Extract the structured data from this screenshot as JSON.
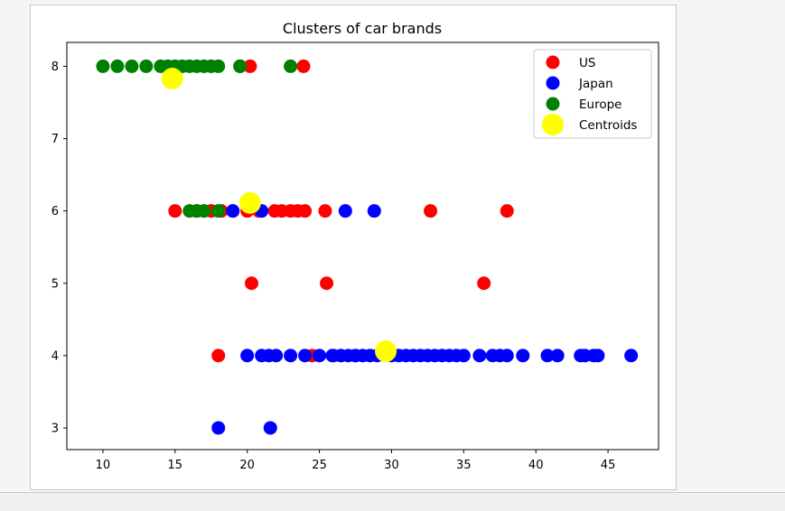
{
  "chart_data": {
    "type": "scatter",
    "title": "Clusters of car brands",
    "xlabel": "",
    "ylabel": "",
    "xlim": [
      7.5,
      48.5
    ],
    "ylim": [
      2.7,
      8.33
    ],
    "xticks": [
      10,
      15,
      20,
      25,
      30,
      35,
      40,
      45
    ],
    "yticks": [
      3,
      4,
      5,
      6,
      7,
      8
    ],
    "grid": false,
    "legend_position": "top-right",
    "series": [
      {
        "name": "US",
        "color": "#ff0000",
        "points": [
          [
            19.5,
            8
          ],
          [
            20.2,
            8
          ],
          [
            23.9,
            8
          ],
          [
            15.0,
            6
          ],
          [
            16.5,
            6
          ],
          [
            17.5,
            6
          ],
          [
            18.2,
            6
          ],
          [
            19.0,
            6
          ],
          [
            20.0,
            6
          ],
          [
            20.8,
            6
          ],
          [
            21.9,
            6
          ],
          [
            22.4,
            6
          ],
          [
            23.0,
            6
          ],
          [
            23.5,
            6
          ],
          [
            24.0,
            6
          ],
          [
            25.4,
            6
          ],
          [
            32.7,
            6
          ],
          [
            38.0,
            6
          ],
          [
            20.3,
            5
          ],
          [
            25.5,
            5
          ],
          [
            36.4,
            5
          ],
          [
            18.0,
            4
          ],
          [
            24.5,
            4
          ],
          [
            26.0,
            4
          ],
          [
            27.5,
            4
          ]
        ]
      },
      {
        "name": "Japan",
        "color": "#0000ff",
        "points": [
          [
            19.0,
            6
          ],
          [
            21.0,
            6
          ],
          [
            26.8,
            6
          ],
          [
            28.8,
            6
          ],
          [
            20.0,
            4
          ],
          [
            21.0,
            4
          ],
          [
            21.5,
            4
          ],
          [
            22.0,
            4
          ],
          [
            23.0,
            4
          ],
          [
            24.0,
            4
          ],
          [
            25.0,
            4
          ],
          [
            25.9,
            4
          ],
          [
            26.5,
            4
          ],
          [
            27.0,
            4
          ],
          [
            27.5,
            4
          ],
          [
            28.0,
            4
          ],
          [
            28.5,
            4
          ],
          [
            29.0,
            4
          ],
          [
            30.0,
            4
          ],
          [
            30.5,
            4
          ],
          [
            31.0,
            4
          ],
          [
            31.5,
            4
          ],
          [
            32.0,
            4
          ],
          [
            32.5,
            4
          ],
          [
            33.0,
            4
          ],
          [
            33.5,
            4
          ],
          [
            34.0,
            4
          ],
          [
            34.5,
            4
          ],
          [
            35.0,
            4
          ],
          [
            36.1,
            4
          ],
          [
            37.0,
            4
          ],
          [
            37.5,
            4
          ],
          [
            38.0,
            4
          ],
          [
            39.1,
            4
          ],
          [
            40.8,
            4
          ],
          [
            41.5,
            4
          ],
          [
            43.1,
            4
          ],
          [
            43.4,
            4
          ],
          [
            44.0,
            4
          ],
          [
            44.3,
            4
          ],
          [
            46.6,
            4
          ],
          [
            18.0,
            3
          ],
          [
            21.6,
            3
          ]
        ]
      },
      {
        "name": "Europe",
        "color": "#008000",
        "points": [
          [
            10.0,
            8
          ],
          [
            11.0,
            8
          ],
          [
            12.0,
            8
          ],
          [
            13.0,
            8
          ],
          [
            14.0,
            8
          ],
          [
            14.5,
            8
          ],
          [
            15.0,
            8
          ],
          [
            15.5,
            8
          ],
          [
            16.0,
            8
          ],
          [
            16.5,
            8
          ],
          [
            17.0,
            8
          ],
          [
            17.5,
            8
          ],
          [
            18.0,
            8
          ],
          [
            19.5,
            8
          ],
          [
            23.0,
            8
          ],
          [
            16.0,
            6
          ],
          [
            16.5,
            6
          ],
          [
            17.0,
            6
          ],
          [
            18.0,
            6
          ]
        ]
      },
      {
        "name": "Centroids",
        "color": "#ffff00",
        "points": [
          [
            14.8,
            7.83
          ],
          [
            20.2,
            6.11
          ],
          [
            29.6,
            4.06
          ]
        ]
      }
    ]
  }
}
